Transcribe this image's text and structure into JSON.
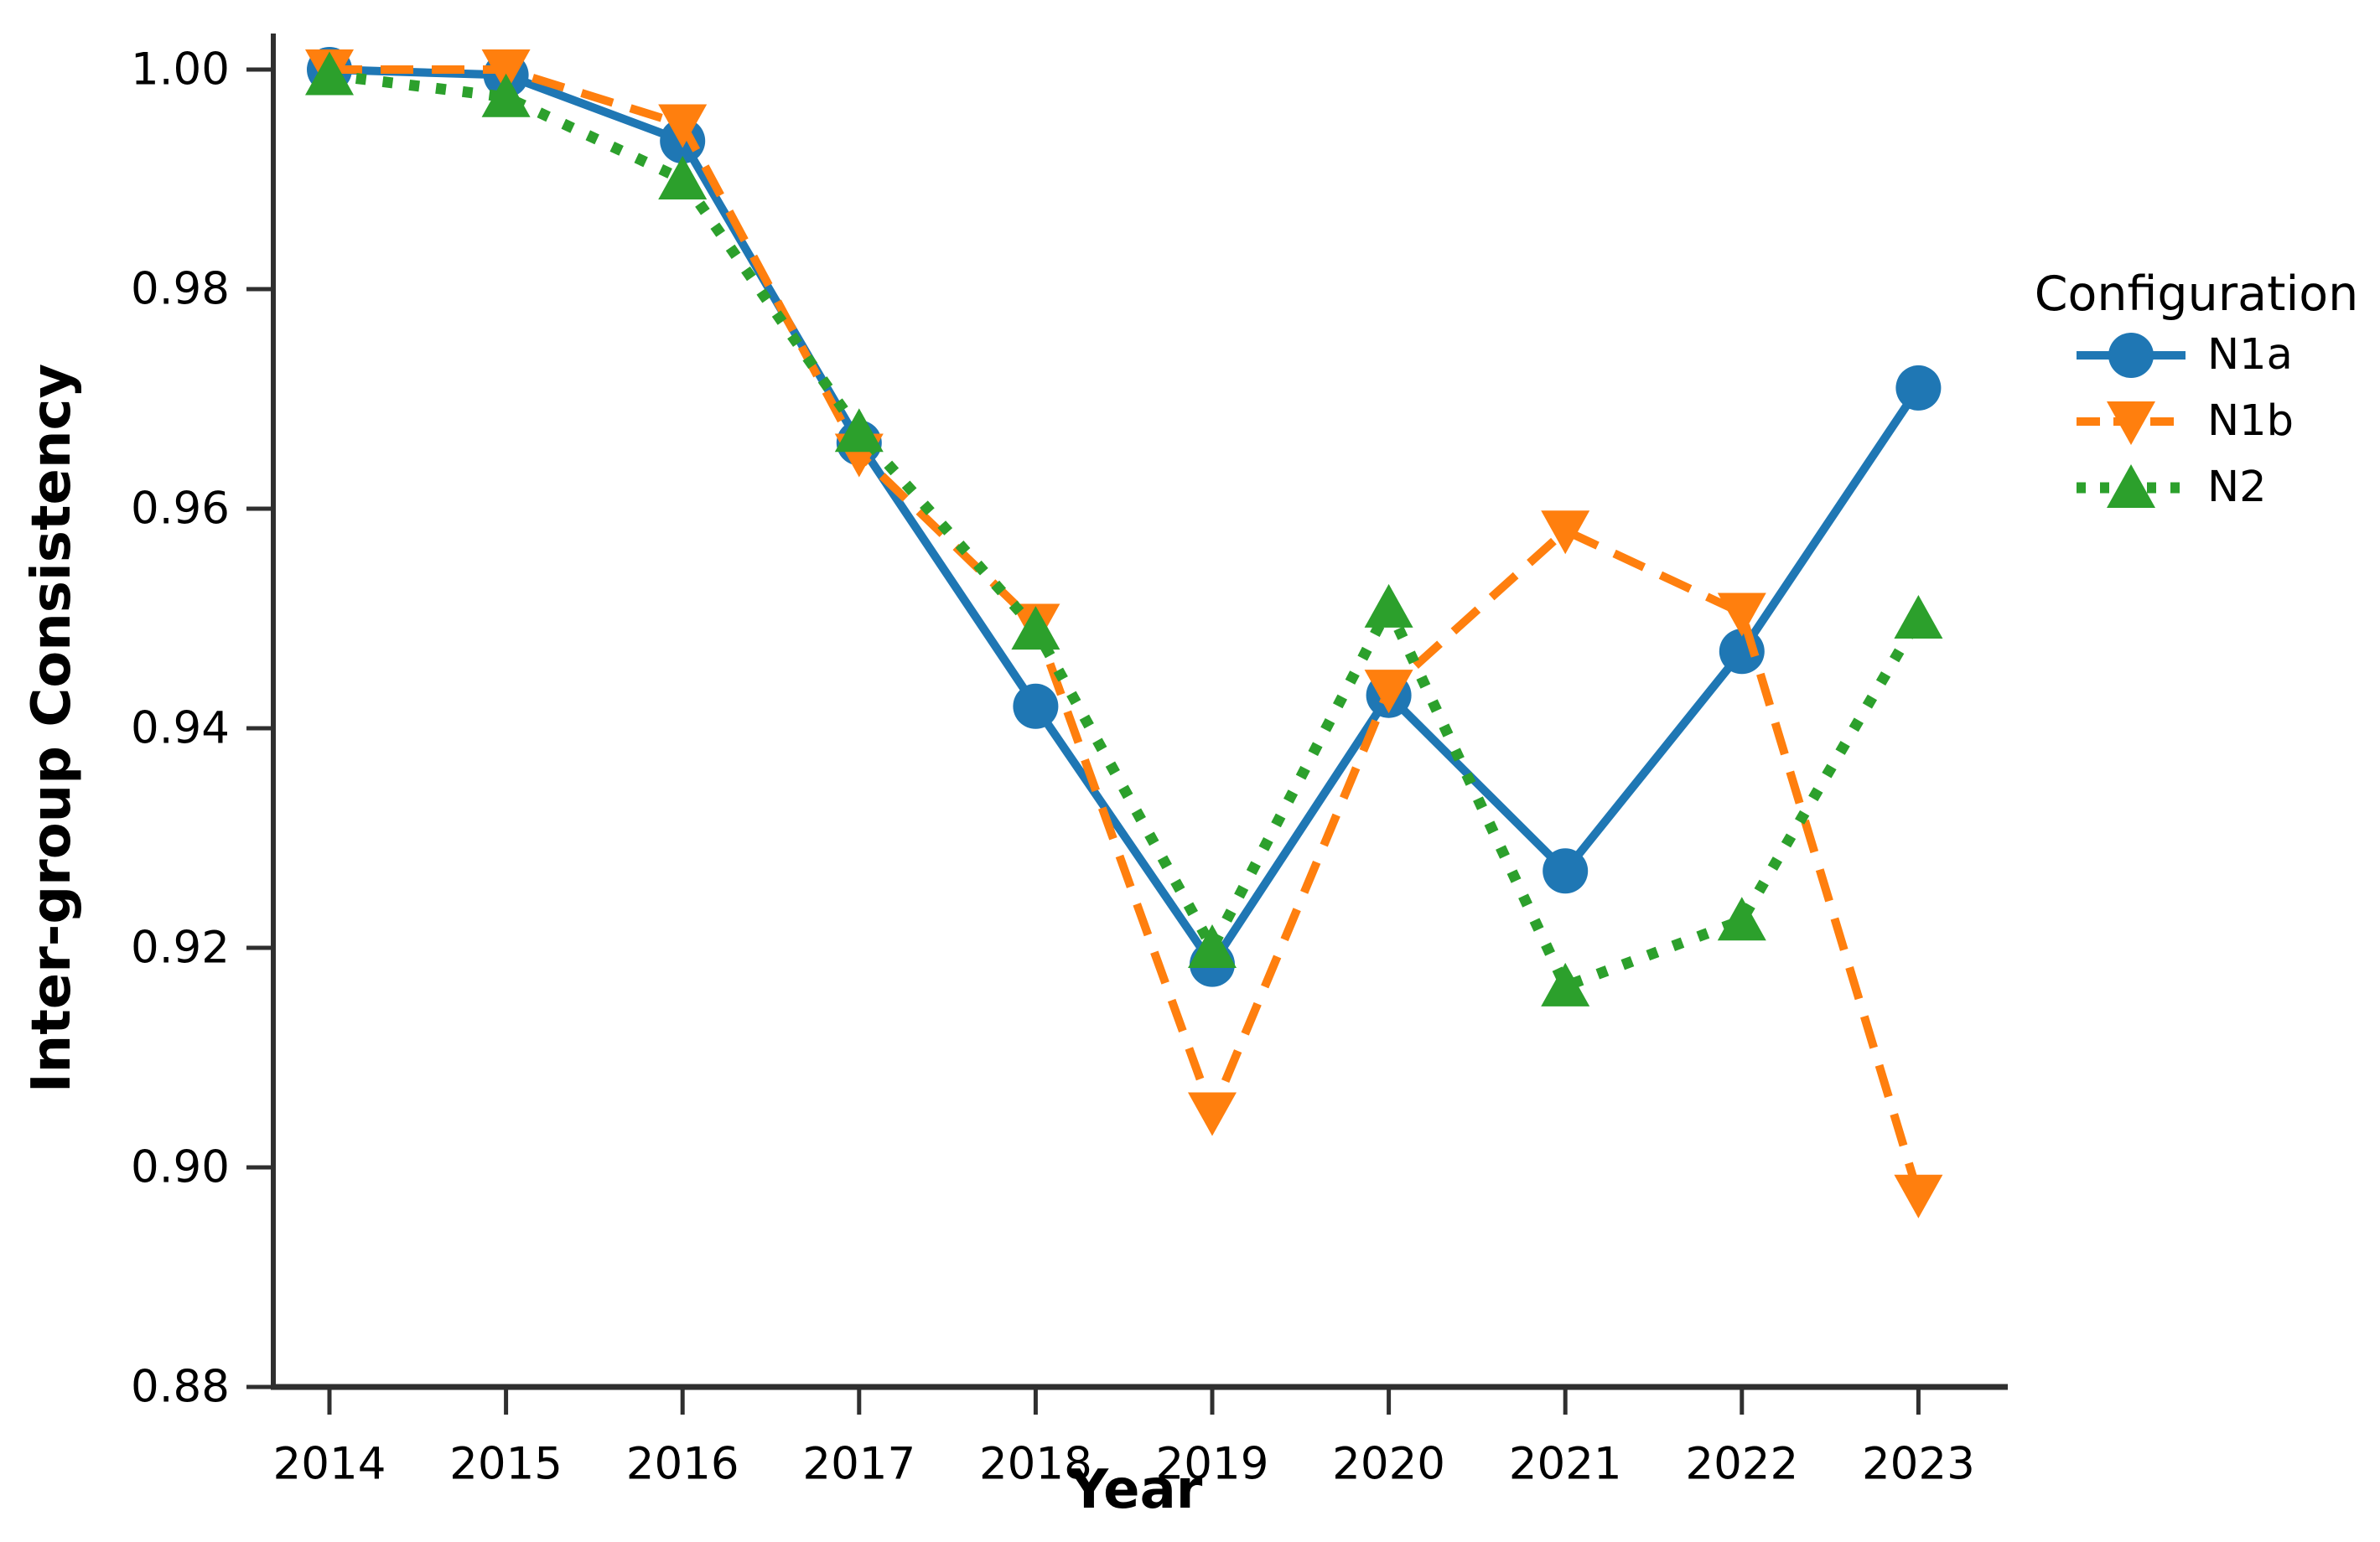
{
  "figure": {
    "background": "#ffffff",
    "text_color": "#000000",
    "axis_color": "#2f2f2f"
  },
  "chart_data": {
    "type": "line",
    "title": "",
    "xlabel": "Year",
    "ylabel": "Inter-group Consistency",
    "categories": [
      2014,
      2015,
      2016,
      2017,
      2018,
      2019,
      2020,
      2021,
      2022,
      2023
    ],
    "x_tick_labels": [
      "2014",
      "2015",
      "2016",
      "2017",
      "2018",
      "2019",
      "2020",
      "2021",
      "2022",
      "2023"
    ],
    "y_ticks": [
      0.88,
      0.9,
      0.92,
      0.94,
      0.96,
      0.98,
      1.0
    ],
    "y_tick_labels": [
      "0.88",
      "0.90",
      "0.92",
      "0.94",
      "0.96",
      "0.98",
      "1.00"
    ],
    "ylim": [
      0.88,
      1.0035
    ],
    "grid": false,
    "legend": {
      "title": "Configuration",
      "position": "right-outside"
    },
    "series": [
      {
        "name": "N1a",
        "color": "#1f77b4",
        "linestyle": "solid",
        "marker": "circle",
        "values": [
          1.0,
          0.9995,
          0.9935,
          0.966,
          0.942,
          0.9185,
          0.943,
          0.927,
          0.947,
          0.971
        ]
      },
      {
        "name": "N1b",
        "color": "#ff7f0e",
        "linestyle": "dashed",
        "marker": "triangle-down",
        "values": [
          1.0,
          1.0,
          0.995,
          0.965,
          0.9495,
          0.905,
          0.9435,
          0.958,
          0.9505,
          0.8975
        ]
      },
      {
        "name": "N2",
        "color": "#2ca02c",
        "linestyle": "dotted",
        "marker": "triangle-up",
        "values": [
          0.9995,
          0.9975,
          0.99,
          0.967,
          0.949,
          0.92,
          0.951,
          0.9165,
          0.9225,
          0.95
        ]
      }
    ]
  }
}
